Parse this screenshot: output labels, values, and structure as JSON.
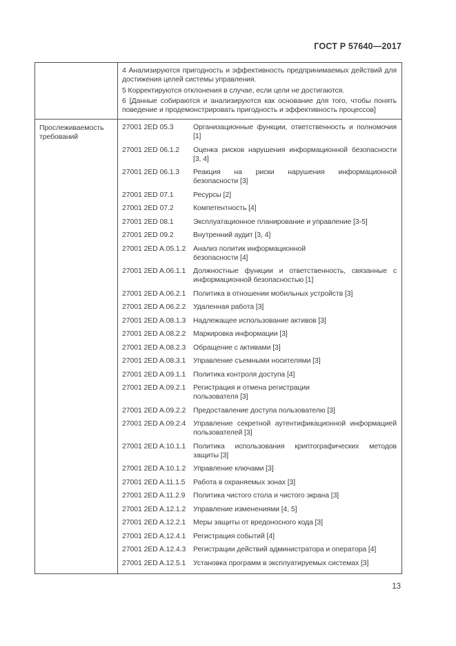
{
  "page": {
    "header_title": "ГОСТ Р 57640—2017",
    "page_number": "13"
  },
  "table": {
    "continuation_row": {
      "paragraphs": [
        "4 Анализируются пригодность и эффективность предпринимаемых действий для достижения целей системы управления.",
        "5 Корректируются отклонения в случае, если цели не достигаются.",
        "6 [Данные собираются и анализируются как основание для того, чтобы понять поведение и продемонстрировать пригодность и эффективность процессов]"
      ]
    },
    "traceability_row": {
      "label": "Прослеживаемость требований",
      "entries": [
        {
          "code": "27001 2ED 05.3",
          "description": "Организационные функции, ответственность и полномочия [1]"
        },
        {
          "code": "27001 2ED 06.1.2",
          "description": "Оценка рисков нарушения информационной безопасности [3, 4]"
        },
        {
          "code": "27001 2ED 06.1.3",
          "description": "Реакция на риски нарушения информационной безопасности [3]"
        },
        {
          "code": "27001 2ED 07.1",
          "description": "Ресурсы [2]"
        },
        {
          "code": "27001 2ED 07.2",
          "description": "Компетентность [4]"
        },
        {
          "code": "27001 2ED 08.1",
          "description": "Эксплуатационное планирование и управление [3-5]"
        },
        {
          "code": "27001 2ED 09.2",
          "description": "Внутренний аудит [3, 4]"
        },
        {
          "code": "27001 2ED A.05.1.2",
          "description": "Анализ политик информационной\nбезопасности [4]"
        },
        {
          "code": "27001 2ED A.06.1.1",
          "description": "Должностные функции и ответственность, связанные с информационной безопасностью [1]"
        },
        {
          "code": "27001 2ED A.06.2.1",
          "description": "Политика в отношении мобильных устройств [3]"
        },
        {
          "code": "27001 2ED A.06.2.2",
          "description": "Удаленная работа [3]"
        },
        {
          "code": "27001 2ED A.08.1.3",
          "description": "Надлежащее использование активов [3]"
        },
        {
          "code": "27001 2ED A.08.2.2",
          "description": "Маркировка информации [3]"
        },
        {
          "code": "27001 2ED A.08.2.3",
          "description": "Обращение с активами [3]"
        },
        {
          "code": "27001 2ED A.08.3.1",
          "description": "Управление съемными носителями [3]"
        },
        {
          "code": "27001 2ED A.09.1.1",
          "description": "Политика контроля доступа [4]"
        },
        {
          "code": "27001 2ED A.09.2.1",
          "description": "Регистрация и отмена регистрации\nпользователя [3]"
        },
        {
          "code": "27001 2ED A.09.2.2",
          "description": "Предоставление доступа пользователю [3]"
        },
        {
          "code": "27001 2ED A.09.2.4",
          "description": "Управление секретной аутентификационной информацией пользователей [3]"
        },
        {
          "code": "27001 2ED A.10.1.1",
          "description": "Политика использования криптографических методов защиты [3]"
        },
        {
          "code": "27001 2ED A.10.1.2",
          "description": "Управление ключами [3]"
        },
        {
          "code": "27001 2ED A.11.1.5",
          "description": "Работа в охраняемых зонах [3]"
        },
        {
          "code": "27001 2ED A.11.2.9",
          "description": "Политика чистого стола и чистого экрана [3]"
        },
        {
          "code": "27001 2ED A.12.1.2",
          "description": "Управление изменениями [4, 5]"
        },
        {
          "code": "27001 2ED A.12.2.1",
          "description": "Меры защиты от вредоносного кода [3]"
        },
        {
          "code": "27001 2ED A.12.4.1",
          "description": "Регистрация событий [4]"
        },
        {
          "code": "27001 2ED A.12.4.3",
          "description": "Регистрации действий администратора и оператора [4]"
        },
        {
          "code": "27001 2ED A.12.5.1",
          "description": "Установка программ в эксплуатируемых системах [3]"
        }
      ]
    }
  }
}
